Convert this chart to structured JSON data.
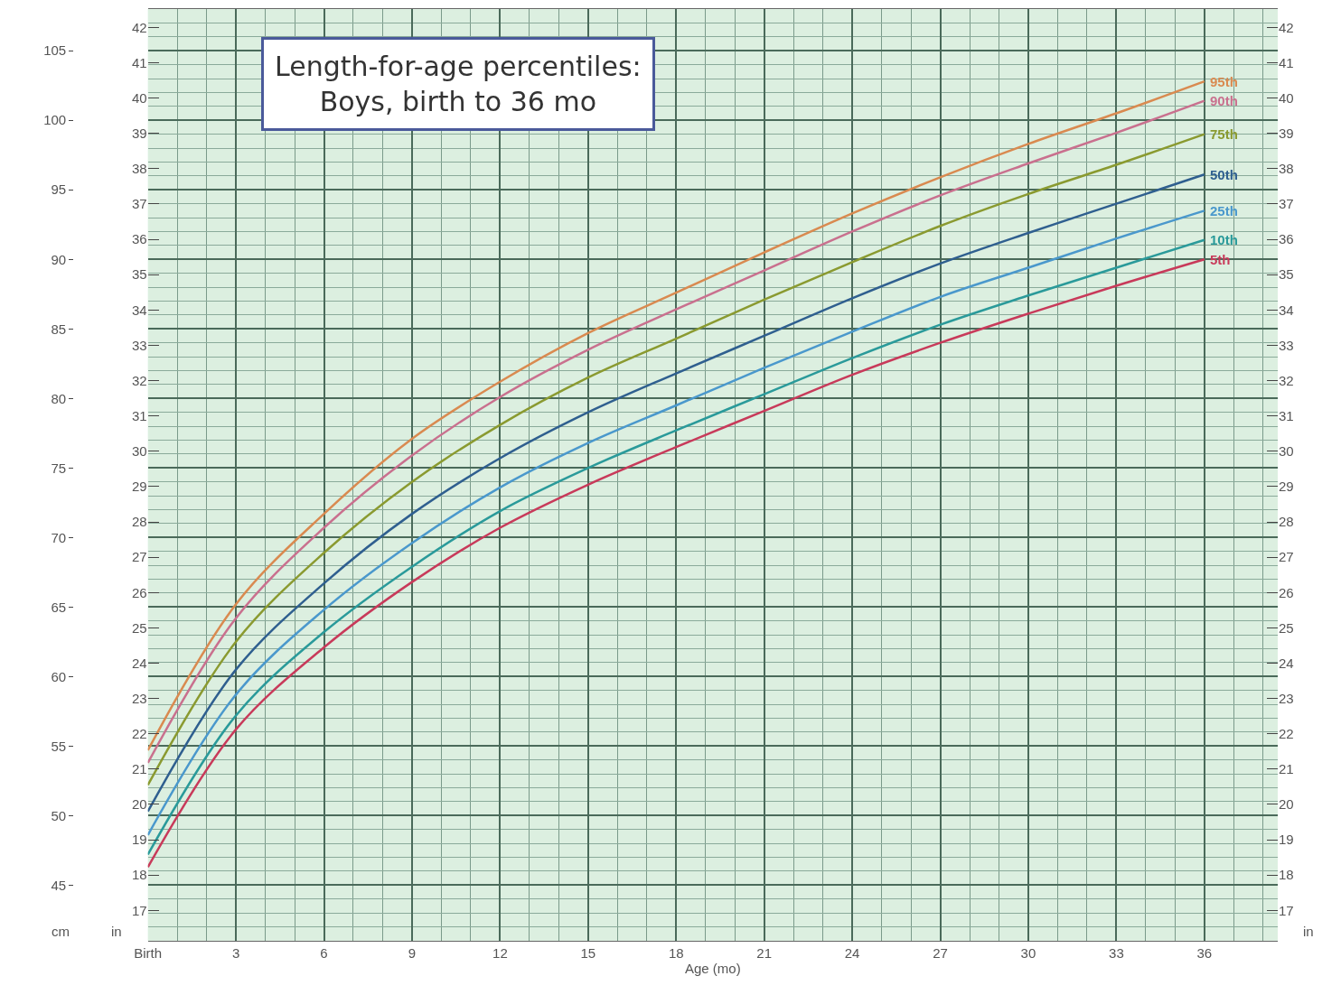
{
  "chart_data": {
    "type": "line",
    "title": "Length-for-age percentiles:\nBoys, birth to 36 mo",
    "xlabel": "Age (mo)",
    "ylabel": "cm",
    "y2label": "in",
    "y3label": "in",
    "x": [
      0,
      3,
      6,
      9,
      12,
      15,
      18,
      21,
      24,
      27,
      30,
      33,
      36
    ],
    "xlim": [
      0,
      38.5
    ],
    "xticks": [
      {
        "value": 0,
        "label": "Birth"
      },
      3,
      6,
      9,
      12,
      15,
      18,
      21,
      24,
      27,
      30,
      33,
      36
    ],
    "ylim": [
      41,
      108
    ],
    "yticks": [
      45,
      50,
      55,
      60,
      65,
      70,
      75,
      80,
      85,
      90,
      95,
      100,
      105
    ],
    "y2lim": [
      16.14,
      42.52
    ],
    "y2ticks": [
      17,
      18,
      19,
      20,
      21,
      22,
      23,
      24,
      25,
      26,
      27,
      28,
      29,
      30,
      31,
      32,
      33,
      34,
      35,
      36,
      37,
      38,
      39,
      40,
      41,
      42
    ],
    "y3lim": [
      16.14,
      42.52
    ],
    "y3ticks": [
      17,
      18,
      19,
      20,
      21,
      22,
      23,
      24,
      25,
      26,
      27,
      28,
      29,
      30,
      31,
      32,
      33,
      34,
      35,
      36,
      37,
      38,
      39,
      40,
      41,
      42
    ],
    "grid": true,
    "line_style": "solid",
    "series": [
      {
        "name": "95th",
        "color": "#d98a50",
        "values": [
          54.7,
          65.2,
          71.7,
          77.1,
          81.2,
          84.7,
          87.6,
          90.5,
          93.3,
          95.9,
          98.3,
          100.5,
          102.8
        ]
      },
      {
        "name": "90th",
        "color": "#c9708e",
        "values": [
          53.8,
          64.2,
          70.7,
          75.9,
          80.1,
          83.5,
          86.4,
          89.2,
          92.0,
          94.6,
          96.9,
          99.1,
          101.4
        ]
      },
      {
        "name": "75th",
        "color": "#8a9a30",
        "values": [
          52.2,
          62.5,
          68.9,
          74.0,
          78.1,
          81.5,
          84.3,
          87.1,
          89.8,
          92.4,
          94.7,
          96.8,
          99.0
        ]
      },
      {
        "name": "50th",
        "color": "#2f5f8f",
        "values": [
          50.3,
          60.5,
          66.7,
          71.7,
          75.7,
          79.0,
          81.8,
          84.5,
          87.2,
          89.7,
          91.9,
          94.0,
          96.1
        ]
      },
      {
        "name": "25th",
        "color": "#4a98cc",
        "values": [
          48.6,
          58.7,
          64.8,
          69.6,
          73.6,
          76.8,
          79.5,
          82.2,
          84.8,
          87.3,
          89.4,
          91.5,
          93.5
        ]
      },
      {
        "name": "10th",
        "color": "#2a9a9a",
        "values": [
          47.2,
          57.2,
          63.2,
          67.9,
          71.9,
          75.0,
          77.7,
          80.3,
          82.9,
          85.3,
          87.4,
          89.4,
          91.4
        ]
      },
      {
        "name": "5th",
        "color": "#c83a5a",
        "values": [
          46.3,
          56.2,
          62.1,
          66.8,
          70.7,
          73.8,
          76.5,
          79.1,
          81.7,
          84.0,
          86.1,
          88.1,
          90.0
        ]
      }
    ]
  }
}
